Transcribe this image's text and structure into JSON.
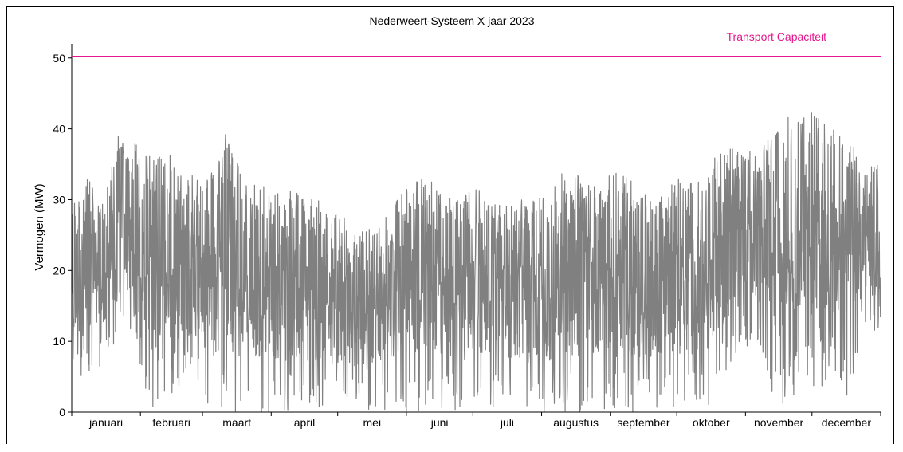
{
  "chart_data": {
    "type": "line",
    "title": "Nederweert-Systeem X jaar 2023",
    "xlabel": "",
    "ylabel": "Vermogen (MW)",
    "ylim": [
      0,
      52
    ],
    "yticks": [
      0,
      10,
      20,
      30,
      40,
      50
    ],
    "months": [
      "januari",
      "februari",
      "maart",
      "april",
      "mei",
      "juni",
      "juli",
      "augustus",
      "september",
      "oktober",
      "november",
      "december"
    ],
    "grid": false,
    "legend": "none",
    "capacity": {
      "label": "Transport Capaciteit",
      "value": 50.2,
      "color": "#e6168c"
    },
    "series": [
      {
        "color": "#808080",
        "weekly_x": [
          "2023-01-01",
          "2023-01-08",
          "2023-01-15",
          "2023-01-22",
          "2023-01-29",
          "2023-02-05",
          "2023-02-12",
          "2023-02-19",
          "2023-02-26",
          "2023-03-05",
          "2023-03-12",
          "2023-03-19",
          "2023-03-26",
          "2023-04-02",
          "2023-04-09",
          "2023-04-16",
          "2023-04-23",
          "2023-04-30",
          "2023-05-07",
          "2023-05-14",
          "2023-05-21",
          "2023-05-28",
          "2023-06-04",
          "2023-06-11",
          "2023-06-18",
          "2023-06-25",
          "2023-07-02",
          "2023-07-09",
          "2023-07-16",
          "2023-07-23",
          "2023-07-30",
          "2023-08-06",
          "2023-08-13",
          "2023-08-20",
          "2023-08-27",
          "2023-09-03",
          "2023-09-10",
          "2023-09-17",
          "2023-09-24",
          "2023-10-01",
          "2023-10-08",
          "2023-10-15",
          "2023-10-22",
          "2023-10-29",
          "2023-11-05",
          "2023-11-12",
          "2023-11-19",
          "2023-11-26",
          "2023-12-03",
          "2023-12-10",
          "2023-12-17",
          "2023-12-24"
        ],
        "weekly_max": [
          29,
          33,
          30,
          39,
          38,
          37,
          37,
          35,
          33,
          34,
          40,
          33,
          33,
          31,
          32,
          30,
          30,
          28,
          27,
          26,
          27,
          30,
          33,
          35,
          32,
          30,
          32,
          30,
          29,
          30,
          30,
          32,
          35,
          33,
          33,
          34,
          34,
          31,
          32,
          33,
          33,
          35,
          37,
          38,
          38,
          39,
          42,
          42,
          43,
          40,
          39,
          35
        ],
        "weekly_min": [
          4,
          4,
          7,
          9,
          10,
          0,
          2,
          3,
          4,
          0,
          0,
          0,
          0,
          0,
          0,
          0,
          0,
          0,
          0,
          0,
          0,
          0,
          0,
          0,
          0,
          0,
          0,
          0,
          0,
          0,
          0,
          0,
          0,
          0,
          0,
          0,
          0,
          0,
          0,
          0,
          0,
          0,
          5,
          8,
          10,
          3,
          0,
          4,
          2,
          6,
          2,
          11
        ]
      }
    ]
  }
}
